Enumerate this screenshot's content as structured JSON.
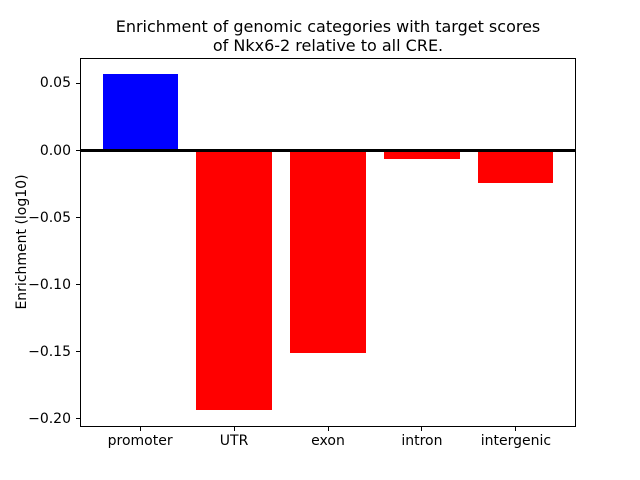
{
  "chart_data": {
    "type": "bar",
    "title": "Enrichment of genomic categories with target scores\nof Nkx6-2 relative to all CRE.",
    "xlabel": "",
    "ylabel": "Enrichment (log10)",
    "categories": [
      "promoter",
      "UTR",
      "exon",
      "intron",
      "intergenic"
    ],
    "values": [
      0.057,
      -0.193,
      -0.151,
      -0.006,
      -0.024
    ],
    "positive_color": "#0000ff",
    "negative_color": "#ff0000",
    "axis_color": "#000000",
    "background_color": "#ffffff",
    "ylim": [
      -0.206,
      0.069
    ],
    "yticks": [
      0.05,
      0.0,
      -0.05,
      -0.1,
      -0.15,
      -0.2
    ],
    "ytick_labels": [
      "0.05",
      "0.00",
      "−0.05",
      "−0.10",
      "−0.15",
      "−0.20"
    ],
    "grid": false,
    "legend": null,
    "zero_line": true
  }
}
